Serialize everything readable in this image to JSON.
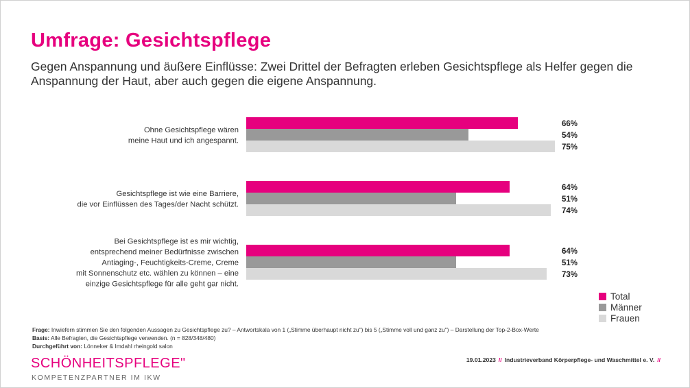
{
  "header": {
    "title": "Umfrage: Gesichtspflege",
    "subtitle": "Gegen Anspannung und äußere Einflüsse: Zwei Drittel der Befragten erleben Gesichtspflege als Helfer gegen die Anspannung der Haut, aber auch gegen die eigene Anspannung."
  },
  "chart_data": {
    "type": "bar",
    "orientation": "horizontal",
    "unit": "%",
    "xlim": [
      0,
      100
    ],
    "grid": false,
    "legend_position": "bottom-right",
    "categories": [
      [
        "Ohne Gesichtspflege wären",
        "meine Haut und ich angespannt."
      ],
      [
        "Gesichtspflege ist wie eine Barriere,",
        "die vor Einflüssen des Tages/der Nacht schützt."
      ],
      [
        "Bei Gesichtspflege ist es mir wichtig,",
        "entsprechend meiner Bedürfnisse zwischen",
        "Antiaging-, Feuchtigkeits-Creme, Creme",
        "mit Sonnenschutz etc. wählen zu können – eine",
        "einzige Gesichtspflege für alle geht gar nicht."
      ]
    ],
    "series": [
      {
        "name": "Total",
        "color": "#e6007e",
        "values": [
          66,
          64,
          64
        ]
      },
      {
        "name": "Männer",
        "color": "#999999",
        "values": [
          54,
          51,
          51
        ]
      },
      {
        "name": "Frauen",
        "color": "#d9d9d9",
        "values": [
          75,
          74,
          73
        ]
      }
    ],
    "value_labels": [
      [
        "66%",
        "54%",
        "75%"
      ],
      [
        "64%",
        "51%",
        "74%"
      ],
      [
        "64%",
        "51%",
        "73%"
      ]
    ]
  },
  "footnotes": {
    "frage_label": "Frage:",
    "frage_text": " Inwiefern stimmen Sie den folgenden Aussagen zu Gesichtspflege zu? – Antwortskala von 1 („Stimme überhaupt nicht zu\") bis 5 („Stimme voll und ganz zu\") – Darstellung der Top-2-Box-Werte",
    "basis_label": "Basis:",
    "basis_text": " Alle Befragten, die Gesichtspflege verwenden. (n = 828/348/480)",
    "durch_label": "Durchgeführt von:",
    "durch_text": " Lönneker & Imdahl rheingold salon"
  },
  "footer": {
    "brand": "SCHÖNHEITSPFLEGE\"",
    "brand_sub": "KOMPETENZPARTNER IM IKW",
    "date": "19.01.2023",
    "separator": "//",
    "org": "Industrieverband Körperpflege- und Waschmittel e. V."
  }
}
